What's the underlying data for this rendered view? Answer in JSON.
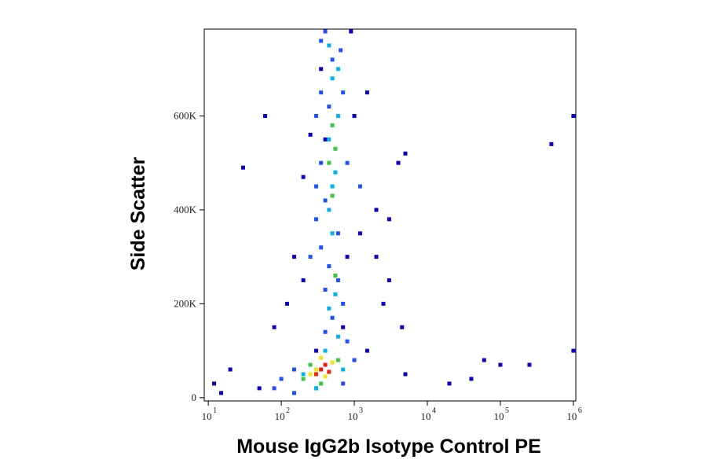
{
  "chart_data": {
    "type": "scatter",
    "x_label": "Mouse IgG2b Isotype Control PE",
    "y_label": "Side Scatter",
    "x_log": true,
    "xlim": [
      8.8,
      1080000
    ],
    "ylim": [
      -7000,
      785000
    ],
    "xticks": [
      {
        "value": 10,
        "label": "10",
        "exponent": "1"
      },
      {
        "value": 100,
        "label": "10",
        "exponent": "2"
      },
      {
        "value": 1000,
        "label": "10",
        "exponent": "3"
      },
      {
        "value": 10000,
        "label": "10",
        "exponent": "4"
      },
      {
        "value": 100000,
        "label": "10",
        "exponent": "5"
      },
      {
        "value": 1000000,
        "label": "10",
        "exponent": "6"
      }
    ],
    "yticks": [
      0,
      {
        "value": 200000,
        "label": "200K"
      },
      {
        "value": 400000,
        "label": "400K"
      },
      {
        "value": 600000,
        "label": "600K"
      }
    ],
    "series": [
      {
        "color": "#0a00c8",
        "x": [
          30,
          60,
          200,
          150,
          120,
          2000,
          3000,
          4000,
          5000,
          2500,
          5000,
          40000,
          60000,
          100000,
          500000,
          1000000,
          1000000,
          12,
          20,
          80,
          300,
          1500,
          1500,
          250,
          350,
          900,
          300,
          2000,
          1200,
          700,
          3000,
          20000,
          15,
          50,
          200,
          400,
          1000,
          800,
          4500,
          250000
        ],
        "values": [
          490000,
          600000,
          470000,
          300000,
          200000,
          400000,
          380000,
          500000,
          520000,
          200000,
          50000,
          40000,
          80000,
          70000,
          540000,
          600000,
          100000,
          30000,
          60000,
          150000,
          100000,
          100000,
          650000,
          560000,
          700000,
          780000,
          20000,
          300000,
          350000,
          150000,
          250000,
          30000,
          10000,
          20000,
          250000,
          550000,
          600000,
          300000,
          150000,
          70000
        ]
      },
      {
        "color": "#1e50ff",
        "x": [
          400,
          500,
          350,
          300,
          450,
          700,
          350,
          300,
          400,
          800,
          300,
          350,
          450,
          600,
          400,
          700,
          500,
          400,
          800,
          150,
          100,
          80,
          150,
          700,
          1000,
          250,
          1200,
          600,
          350,
          650
        ],
        "values": [
          780000,
          720000,
          650000,
          600000,
          620000,
          650000,
          500000,
          450000,
          420000,
          500000,
          380000,
          320000,
          280000,
          250000,
          230000,
          200000,
          170000,
          140000,
          120000,
          60000,
          40000,
          20000,
          10000,
          30000,
          80000,
          300000,
          450000,
          350000,
          760000,
          740000
        ]
      },
      {
        "color": "#00b4f0",
        "x": [
          450,
          500,
          600,
          450,
          550,
          450,
          500,
          550,
          450,
          600,
          200,
          300,
          700,
          400,
          500,
          600
        ],
        "values": [
          750000,
          680000,
          600000,
          550000,
          480000,
          400000,
          350000,
          220000,
          190000,
          130000,
          50000,
          20000,
          60000,
          100000,
          450000,
          700000
        ]
      },
      {
        "color": "#3cc83c",
        "x": [
          500,
          450,
          550,
          500,
          250,
          200,
          600,
          350,
          550
        ],
        "values": [
          580000,
          500000,
          530000,
          430000,
          70000,
          40000,
          80000,
          30000,
          260000
        ]
      },
      {
        "color": "#f0e614",
        "x": [
          300,
          400,
          500,
          250,
          350
        ],
        "values": [
          60000,
          45000,
          75000,
          50000,
          85000
        ]
      },
      {
        "color": "#f01e0a",
        "x": [
          350,
          400,
          450,
          300
        ],
        "values": [
          60000,
          70000,
          55000,
          50000
        ]
      }
    ]
  }
}
